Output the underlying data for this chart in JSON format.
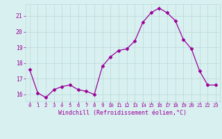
{
  "x": [
    0,
    1,
    2,
    3,
    4,
    5,
    6,
    7,
    8,
    9,
    10,
    11,
    12,
    13,
    14,
    15,
    16,
    17,
    18,
    19,
    20,
    21,
    22,
    23
  ],
  "y": [
    17.6,
    16.1,
    15.8,
    16.3,
    16.5,
    16.6,
    16.3,
    16.2,
    16.0,
    17.8,
    18.4,
    18.8,
    18.9,
    19.4,
    20.6,
    21.2,
    21.5,
    21.2,
    20.7,
    19.5,
    18.9,
    17.5,
    16.6,
    16.6
  ],
  "line_color": "#990099",
  "marker": "D",
  "marker_size": 2.5,
  "bg_color": "#d9f0f0",
  "grid_color": "#b8d8d8",
  "xlabel": "Windchill (Refroidissement éolien,°C)",
  "xlabel_color": "#990099",
  "tick_color": "#990099",
  "yticks": [
    16,
    17,
    18,
    19,
    20,
    21
  ],
  "xticks": [
    0,
    1,
    2,
    3,
    4,
    5,
    6,
    7,
    8,
    9,
    10,
    11,
    12,
    13,
    14,
    15,
    16,
    17,
    18,
    19,
    20,
    21,
    22,
    23
  ],
  "ylim": [
    15.55,
    21.75
  ],
  "xlim": [
    -0.5,
    23.5
  ]
}
